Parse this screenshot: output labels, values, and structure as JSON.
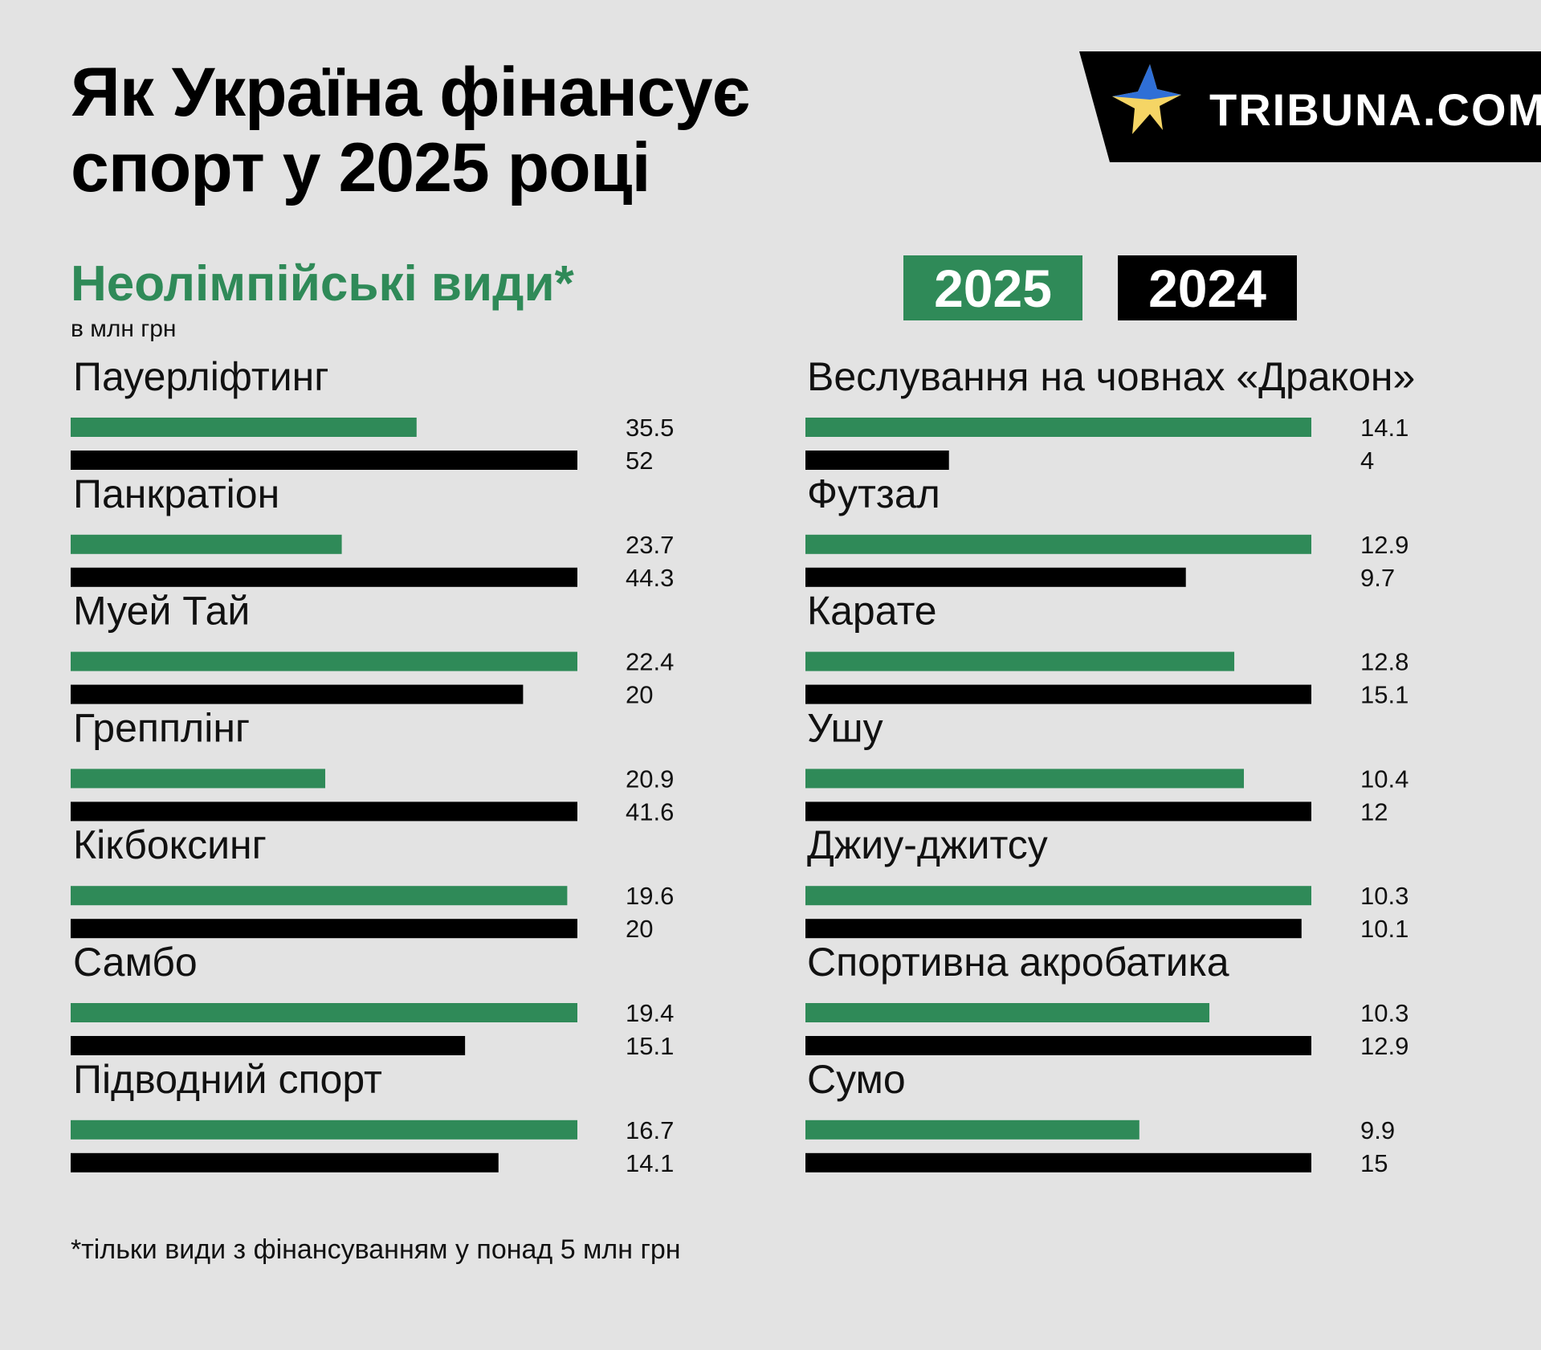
{
  "title_line1": "Як Україна фінансує",
  "title_line2": "спорт у 2025 році",
  "logo_text": "TRIBUNA.COM",
  "subtitle": "Неолімпійські види*",
  "unit": "в млн грн",
  "legend": {
    "y2025": "2025",
    "y2024": "2024"
  },
  "footnote": "*тільки види з фінансуванням у понад 5 млн грн",
  "colors": {
    "y2025": "#2f8a58",
    "y2024": "#000000",
    "background": "#e3e3e3",
    "star_blue": "#2f6fd6",
    "star_yellow": "#f5d565"
  },
  "chart_data": {
    "type": "bar",
    "orientation": "horizontal",
    "unit": "в млн грн",
    "series": [
      {
        "name": "2025",
        "color": "#2f8a58"
      },
      {
        "name": "2024",
        "color": "#000000"
      }
    ],
    "panels": [
      {
        "items": [
          {
            "category": "Пауерліфтинг",
            "y2025": 35.5,
            "y2024": 52,
            "label2025": "35.5",
            "label2024": "52"
          },
          {
            "category": "Панкратіон",
            "y2025": 23.7,
            "y2024": 44.3,
            "label2025": "23.7",
            "label2024": "44.3"
          },
          {
            "category": "Муей Тай",
            "y2025": 22.4,
            "y2024": 20,
            "label2025": "22.4",
            "label2024": "20"
          },
          {
            "category": "Грепплінг",
            "y2025": 20.9,
            "y2024": 41.6,
            "label2025": "20.9",
            "label2024": "41.6"
          },
          {
            "category": "Кікбоксинг",
            "y2025": 19.6,
            "y2024": 20,
            "label2025": "19.6",
            "label2024": "20"
          },
          {
            "category": "Самбо",
            "y2025": 19.4,
            "y2024": 15.1,
            "label2025": "19.4",
            "label2024": "15.1"
          },
          {
            "category": "Підводний спорт",
            "y2025": 16.7,
            "y2024": 14.1,
            "label2025": "16.7",
            "label2024": "14.1"
          }
        ]
      },
      {
        "items": [
          {
            "category": "Веслування на човнах «Дракон»",
            "y2025": 14.1,
            "y2024": 4,
            "label2025": "14.1",
            "label2024": "4"
          },
          {
            "category": "Футзал",
            "y2025": 12.9,
            "y2024": 9.7,
            "label2025": "12.9",
            "label2024": "9.7"
          },
          {
            "category": "Карате",
            "y2025": 12.8,
            "y2024": 15.1,
            "label2025": "12.8",
            "label2024": "15.1"
          },
          {
            "category": "Ушу",
            "y2025": 10.4,
            "y2024": 12,
            "label2025": "10.4",
            "label2024": "12"
          },
          {
            "category": "Джиу-джитсу",
            "y2025": 10.3,
            "y2024": 10.1,
            "label2025": "10.3",
            "label2024": "10.1"
          },
          {
            "category": "Спортивна акробатика",
            "y2025": 10.3,
            "y2024": 12.9,
            "label2025": "10.3",
            "label2024": "12.9"
          },
          {
            "category": "Сумо",
            "y2025": 9.9,
            "y2024": 15,
            "label2025": "9.9",
            "label2024": "15"
          }
        ]
      }
    ]
  }
}
